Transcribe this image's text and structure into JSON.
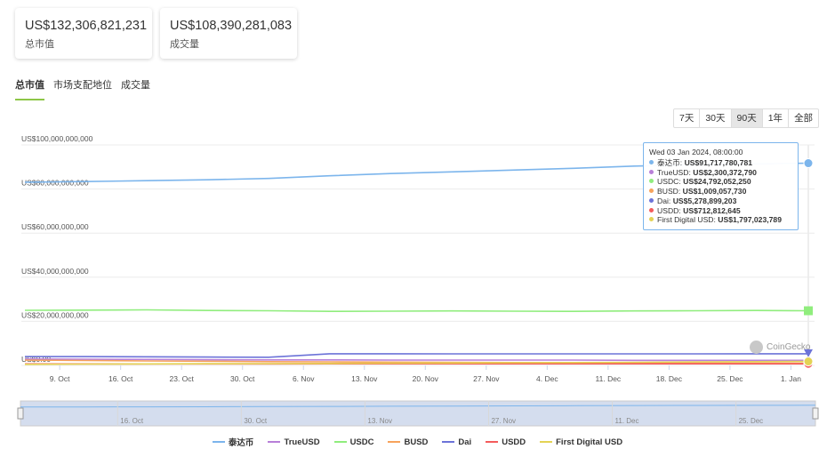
{
  "stats": {
    "market_cap": {
      "value": "US$132,306,821,231",
      "label": "总市值"
    },
    "volume": {
      "value": "US$108,390,281,083",
      "label": "成交量"
    }
  },
  "tabs": [
    {
      "label": "总市值",
      "active": true
    },
    {
      "label": "市场支配地位",
      "active": false
    },
    {
      "label": "成交量",
      "active": false
    }
  ],
  "ranges": [
    {
      "label": "7天",
      "active": false
    },
    {
      "label": "30天",
      "active": false
    },
    {
      "label": "90天",
      "active": true
    },
    {
      "label": "1年",
      "active": false
    },
    {
      "label": "全部",
      "active": false
    }
  ],
  "tooltip": {
    "date": "Wed 03 Jan 2024, 08:00:00",
    "rows": [
      {
        "name": "泰达币",
        "value": "US$91,717,780,781",
        "color": "#7cb5ec"
      },
      {
        "name": "TrueUSD",
        "value": "US$2,300,372,790",
        "color": "#b87fd8"
      },
      {
        "name": "USDC",
        "value": "US$24,792,052,250",
        "color": "#90ed7d"
      },
      {
        "name": "BUSD",
        "value": "US$1,009,057,730",
        "color": "#f7a35c"
      },
      {
        "name": "Dai",
        "value": "US$5,278,899,203",
        "color": "#6c73d8"
      },
      {
        "name": "USDD",
        "value": "US$712,812,645",
        "color": "#f45b5b"
      },
      {
        "name": "First Digital USD",
        "value": "US$1,797,023,789",
        "color": "#e4d354"
      }
    ]
  },
  "watermark": "CoinGecko",
  "chart_data": {
    "type": "line",
    "x": [
      "2023-10-05",
      "2023-10-12",
      "2023-10-19",
      "2023-10-26",
      "2023-11-02",
      "2023-11-09",
      "2023-11-16",
      "2023-11-23",
      "2023-11-30",
      "2023-12-07",
      "2023-12-14",
      "2023-12-21",
      "2023-12-28",
      "2024-01-03"
    ],
    "x_tick_labels": [
      "9. Oct",
      "16. Oct",
      "23. Oct",
      "30. Oct",
      "6. Nov",
      "13. Nov",
      "20. Nov",
      "27. Nov",
      "4. Dec",
      "11. Dec",
      "18. Dec",
      "25. Dec",
      "1. Jan"
    ],
    "x_tick_dates": [
      "2023-10-09",
      "2023-10-16",
      "2023-10-23",
      "2023-10-30",
      "2023-11-06",
      "2023-11-13",
      "2023-11-20",
      "2023-11-27",
      "2023-12-04",
      "2023-12-11",
      "2023-12-18",
      "2023-12-25",
      "2024-01-01"
    ],
    "navigator_labels": [
      "16. Oct",
      "30. Oct",
      "13. Nov",
      "27. Nov",
      "11. Dec",
      "25. Dec"
    ],
    "navigator_dates": [
      "2023-10-16",
      "2023-10-30",
      "2023-11-13",
      "2023-11-27",
      "2023-12-11",
      "2023-12-25"
    ],
    "y_tick_labels": [
      "US$0.00",
      "US$20,000,000,000",
      "US$40,000,000,000",
      "US$60,000,000,000",
      "US$80,000,000,000",
      "US$100,000,000,000"
    ],
    "y_ticks": [
      0,
      20000000000,
      40000000000,
      60000000000,
      80000000000,
      100000000000
    ],
    "ylim": [
      0,
      100000000000
    ],
    "grid": true,
    "legend_position": "bottom-center",
    "series": [
      {
        "name": "泰达币",
        "color": "#7cb5ec",
        "values": [
          83100000000,
          83400000000,
          83800000000,
          84200000000,
          84800000000,
          86000000000,
          87000000000,
          87800000000,
          88600000000,
          89400000000,
          90400000000,
          91000000000,
          91400000000,
          91717780781
        ]
      },
      {
        "name": "TrueUSD",
        "color": "#b87fd8",
        "values": [
          2900000000,
          2800000000,
          2700000000,
          2600000000,
          2500000000,
          2500000000,
          2400000000,
          2400000000,
          2400000000,
          2400000000,
          2300000000,
          2300000000,
          2300000000,
          2300372790
        ]
      },
      {
        "name": "USDC",
        "color": "#90ed7d",
        "values": [
          25000000000,
          25100000000,
          25200000000,
          24900000000,
          24800000000,
          24500000000,
          24600000000,
          24700000000,
          24600000000,
          24500000000,
          24700000000,
          24800000000,
          24900000000,
          24792052250
        ]
      },
      {
        "name": "BUSD",
        "color": "#f7a35c",
        "values": [
          2400000000,
          2200000000,
          2000000000,
          1900000000,
          1700000000,
          1600000000,
          1500000000,
          1400000000,
          1300000000,
          1200000000,
          1100000000,
          1050000000,
          1020000000,
          1009057730
        ]
      },
      {
        "name": "Dai",
        "color": "#6c73d8",
        "values": [
          4000000000,
          4000000000,
          3900000000,
          3800000000,
          3700000000,
          5300000000,
          5300000000,
          5250000000,
          5250000000,
          5250000000,
          5250000000,
          5260000000,
          5270000000,
          5278899203
        ]
      },
      {
        "name": "USDD",
        "color": "#f45b5b",
        "values": [
          700000000,
          700000000,
          700000000,
          700000000,
          700000000,
          710000000,
          710000000,
          710000000,
          710000000,
          710000000,
          710000000,
          712000000,
          712000000,
          712812645
        ]
      },
      {
        "name": "First Digital USD",
        "color": "#e4d354",
        "values": [
          500000000,
          600000000,
          700000000,
          750000000,
          800000000,
          900000000,
          1000000000,
          1100000000,
          1200000000,
          1300000000,
          1400000000,
          1600000000,
          1700000000,
          1797023789
        ]
      }
    ]
  }
}
